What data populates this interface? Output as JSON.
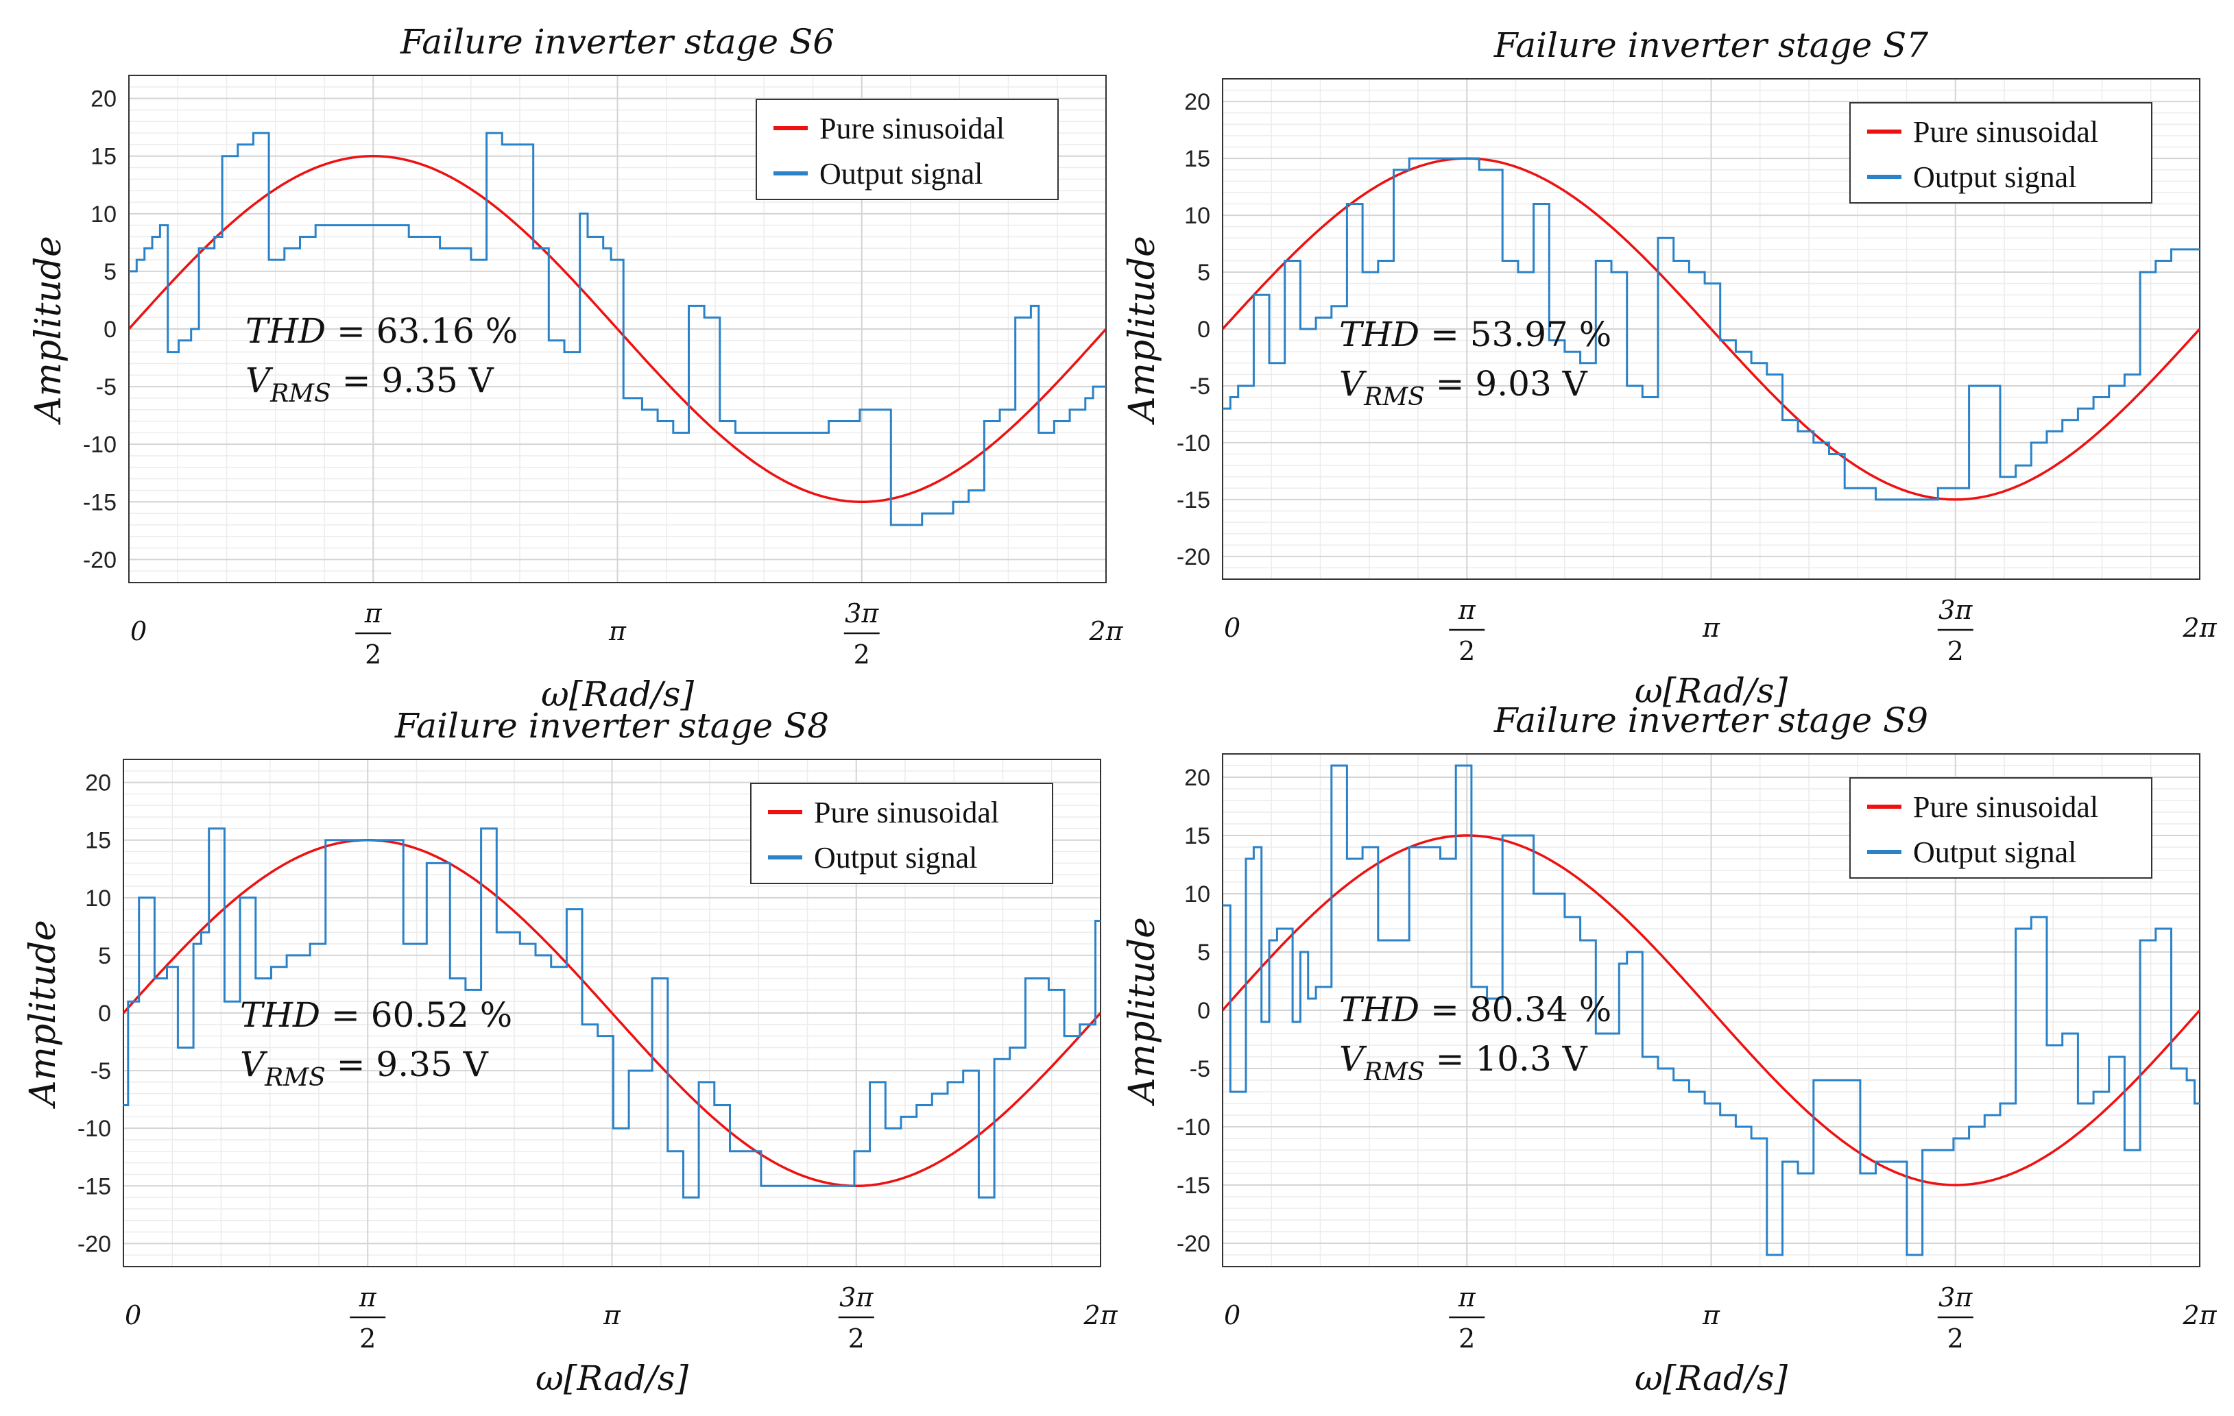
{
  "figure": {
    "x_axis_label": "ω[Rad/s]",
    "y_axis_label": "Amplitude",
    "legend": [
      "Pure sinusoidal",
      "Output signal"
    ],
    "thd_label": "THD",
    "vrms_label": "V",
    "vrms_sub": "RMS"
  },
  "colors": {
    "sinusoid": "#ee1111",
    "output": "#2a82c8",
    "grid_major": "#d4d4d4",
    "grid_minor": "#ececec",
    "axis": "#333333"
  },
  "chart_data": [
    {
      "type": "line",
      "title": "Failure inverter stage S6",
      "xlabel": "ω[Rad/s]",
      "ylabel": "Amplitude",
      "xlim": [
        0,
        6.2832
      ],
      "ylim": [
        -22,
        22
      ],
      "yticks": [
        -20,
        -15,
        -10,
        -5,
        0,
        5,
        10,
        15,
        20
      ],
      "xticks": [
        "0",
        "π/2",
        "π",
        "3π/2",
        "2π"
      ],
      "annotation": {
        "thd": "63.16 %",
        "vrms": "9.35 V"
      },
      "series": [
        {
          "name": "Pure sinusoidal",
          "kind": "sine",
          "amplitude": 15
        },
        {
          "name": "Output signal",
          "kind": "step",
          "x": [
            0,
            0.05,
            0.1,
            0.15,
            0.2,
            0.25,
            0.32,
            0.4,
            0.45,
            0.55,
            0.6,
            0.7,
            0.8,
            0.9,
            1.0,
            1.1,
            1.2,
            1.4,
            1.6,
            1.8,
            2.0,
            2.2,
            2.3,
            2.4,
            2.6,
            2.7,
            2.8,
            2.9,
            2.95,
            3.05,
            3.1,
            3.18,
            3.3,
            3.4,
            3.5,
            3.6,
            3.7,
            3.8,
            3.9,
            4.1,
            4.5,
            4.7,
            4.9,
            5.1,
            5.3,
            5.4,
            5.5,
            5.6,
            5.7,
            5.8,
            5.85,
            5.95,
            6.05,
            6.15,
            6.2
          ],
          "y": [
            5,
            6,
            7,
            8,
            9,
            -2,
            -1,
            0,
            7,
            8,
            15,
            16,
            17,
            6,
            7,
            8,
            9,
            9,
            9,
            8,
            7,
            6,
            17,
            16,
            7,
            -1,
            -2,
            10,
            8,
            7,
            6,
            -6,
            -7,
            -8,
            -9,
            2,
            1,
            -8,
            -9,
            -9,
            -8,
            -7,
            -17,
            -16,
            -15,
            -14,
            -8,
            -7,
            1,
            2,
            -9,
            -8,
            -7,
            -6,
            -5
          ]
        }
      ]
    },
    {
      "type": "line",
      "title": "Failure inverter stage S7",
      "xlabel": "ω[Rad/s]",
      "ylabel": "Amplitude",
      "xlim": [
        0,
        6.2832
      ],
      "ylim": [
        -22,
        22
      ],
      "yticks": [
        -20,
        -15,
        -10,
        -5,
        0,
        5,
        10,
        15,
        20
      ],
      "xticks": [
        "0",
        "π/2",
        "π",
        "3π/2",
        "2π"
      ],
      "annotation": {
        "thd": "53.97 %",
        "vrms": "9.03 V"
      },
      "series": [
        {
          "name": "Pure sinusoidal",
          "kind": "sine",
          "amplitude": 15
        },
        {
          "name": "Output signal",
          "kind": "step",
          "x": [
            0,
            0.05,
            0.1,
            0.2,
            0.3,
            0.4,
            0.5,
            0.6,
            0.7,
            0.8,
            0.9,
            1.0,
            1.1,
            1.2,
            1.3,
            1.5,
            1.65,
            1.8,
            1.9,
            2.0,
            2.1,
            2.2,
            2.3,
            2.4,
            2.5,
            2.6,
            2.7,
            2.8,
            2.9,
            3.0,
            3.1,
            3.2,
            3.3,
            3.4,
            3.5,
            3.6,
            3.7,
            3.8,
            3.9,
            4.0,
            4.2,
            4.4,
            4.6,
            4.8,
            5.0,
            5.1,
            5.2,
            5.3,
            5.4,
            5.5,
            5.6,
            5.7,
            5.8,
            5.9,
            6.0,
            6.1,
            6.2
          ],
          "y": [
            -7,
            -6,
            -5,
            3,
            -3,
            6,
            0,
            1,
            2,
            11,
            5,
            6,
            14,
            15,
            15,
            15,
            14,
            6,
            5,
            11,
            -1,
            -2,
            -3,
            6,
            5,
            -5,
            -6,
            8,
            6,
            5,
            4,
            -1,
            -2,
            -3,
            -4,
            -8,
            -9,
            -10,
            -11,
            -14,
            -15,
            -15,
            -14,
            -5,
            -13,
            -12,
            -10,
            -9,
            -8,
            -7,
            -6,
            -5,
            -4,
            5,
            6,
            7,
            7
          ]
        }
      ]
    },
    {
      "type": "line",
      "title": "Failure inverter stage S8",
      "xlabel": "ω[Rad/s]",
      "ylabel": "Amplitude",
      "xlim": [
        0,
        6.2832
      ],
      "ylim": [
        -22,
        22
      ],
      "yticks": [
        -20,
        -15,
        -10,
        -5,
        0,
        5,
        10,
        15,
        20
      ],
      "xticks": [
        "0",
        "π/2",
        "π",
        "3π/2",
        "2π"
      ],
      "annotation": {
        "thd": "60.52 %",
        "vrms": "9.35 V"
      },
      "series": [
        {
          "name": "Pure sinusoidal",
          "kind": "sine",
          "amplitude": 15
        },
        {
          "name": "Output signal",
          "kind": "step",
          "x": [
            0,
            0.03,
            0.1,
            0.2,
            0.28,
            0.35,
            0.45,
            0.5,
            0.55,
            0.65,
            0.75,
            0.85,
            0.95,
            1.05,
            1.2,
            1.3,
            1.4,
            1.6,
            1.8,
            1.95,
            2.1,
            2.2,
            2.3,
            2.4,
            2.55,
            2.65,
            2.75,
            2.85,
            2.95,
            3.05,
            3.15,
            3.25,
            3.4,
            3.5,
            3.6,
            3.7,
            3.8,
            3.9,
            4.1,
            4.3,
            4.5,
            4.7,
            4.8,
            4.9,
            5.0,
            5.1,
            5.2,
            5.3,
            5.4,
            5.5,
            5.6,
            5.7,
            5.8,
            5.95,
            6.05,
            6.15,
            6.25
          ],
          "y": [
            -8,
            1,
            10,
            3,
            4,
            -3,
            6,
            7,
            16,
            1,
            10,
            3,
            4,
            5,
            6,
            15,
            15,
            15,
            6,
            13,
            3,
            2,
            16,
            7,
            6,
            5,
            4,
            9,
            -1,
            -2,
            -10,
            -5,
            3,
            -12,
            -16,
            -6,
            -8,
            -12,
            -15,
            -15,
            -15,
            -12,
            -6,
            -10,
            -9,
            -8,
            -7,
            -6,
            -5,
            -16,
            -4,
            -3,
            3,
            2,
            -2,
            -1,
            8
          ]
        }
      ]
    },
    {
      "type": "line",
      "title": "Failure inverter stage S9",
      "xlabel": "ω[Rad/s]",
      "ylabel": "Amplitude",
      "xlim": [
        0,
        6.2832
      ],
      "ylim": [
        -22,
        22
      ],
      "yticks": [
        -20,
        -15,
        -10,
        -5,
        0,
        5,
        10,
        15,
        20
      ],
      "xticks": [
        "0",
        "π/2",
        "π",
        "3π/2",
        "2π"
      ],
      "annotation": {
        "thd": "80.34 %",
        "vrms": "10.3 V"
      },
      "series": [
        {
          "name": "Pure sinusoidal",
          "kind": "sine",
          "amplitude": 15
        },
        {
          "name": "Output signal",
          "kind": "step",
          "x": [
            0,
            0.05,
            0.15,
            0.2,
            0.25,
            0.3,
            0.35,
            0.45,
            0.5,
            0.55,
            0.6,
            0.7,
            0.8,
            0.9,
            1.0,
            1.1,
            1.2,
            1.3,
            1.4,
            1.5,
            1.6,
            1.7,
            1.8,
            2.0,
            2.2,
            2.3,
            2.4,
            2.55,
            2.6,
            2.7,
            2.8,
            2.9,
            3.0,
            3.1,
            3.2,
            3.3,
            3.4,
            3.5,
            3.6,
            3.7,
            3.8,
            3.9,
            4.1,
            4.2,
            4.4,
            4.5,
            4.7,
            4.8,
            4.9,
            5.0,
            5.1,
            5.2,
            5.3,
            5.4,
            5.5,
            5.6,
            5.7,
            5.8,
            5.9,
            6.0,
            6.1,
            6.2,
            6.25
          ],
          "y": [
            9,
            -7,
            13,
            14,
            -1,
            6,
            7,
            -1,
            5,
            1,
            2,
            21,
            13,
            14,
            6,
            6,
            14,
            14,
            13,
            21,
            2,
            1,
            15,
            10,
            8,
            6,
            -2,
            4,
            5,
            -4,
            -5,
            -6,
            -7,
            -8,
            -9,
            -10,
            -11,
            -21,
            -13,
            -14,
            -6,
            -6,
            -14,
            -13,
            -21,
            -12,
            -11,
            -10,
            -9,
            -8,
            7,
            8,
            -3,
            -2,
            -8,
            -7,
            -4,
            -12,
            6,
            7,
            -5,
            -6,
            -8
          ]
        }
      ]
    }
  ]
}
